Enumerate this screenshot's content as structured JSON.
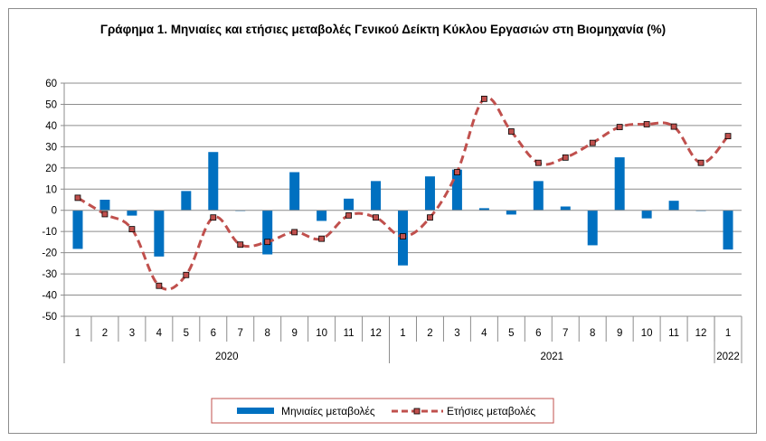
{
  "chart_data": {
    "type": "bar",
    "title": "Γράφημα 1. Μηνιαίες και ετήσιες μεταβολές  Γενικού Δείκτη Κύκλου Εργασιών στη Βιομηχανία (%)",
    "categories": [
      "1",
      "2",
      "3",
      "4",
      "5",
      "6",
      "7",
      "8",
      "9",
      "10",
      "11",
      "12",
      "1",
      "2",
      "3",
      "4",
      "5",
      "6",
      "7",
      "8",
      "9",
      "10",
      "11",
      "12",
      "1"
    ],
    "year_groups": [
      {
        "label": "2020",
        "count": 12
      },
      {
        "label": "2021",
        "count": 12
      },
      {
        "label": "2022",
        "count": 1
      }
    ],
    "ylim": [
      -50,
      60
    ],
    "yticks": [
      -50,
      -40,
      -30,
      -20,
      -10,
      0,
      10,
      20,
      30,
      40,
      50,
      60
    ],
    "grid": true,
    "legend_position": "bottom",
    "series": [
      {
        "name": "Μηνιαίες μεταβολές",
        "type": "bar",
        "color": "#0070c0",
        "values": [
          -18.2,
          5.0,
          -2.5,
          -21.8,
          9.1,
          27.5,
          -0.3,
          -20.8,
          18.0,
          -5.0,
          5.5,
          13.8,
          -26.0,
          16.0,
          19.2,
          1.0,
          -2.0,
          13.8,
          1.8,
          -16.5,
          25.0,
          -3.8,
          4.5,
          -0.2,
          -18.5
        ]
      },
      {
        "name": "Ετήσιες μεταβολές",
        "type": "line",
        "color": "#c0504d",
        "values": [
          5.9,
          -1.8,
          -8.9,
          -35.6,
          -30.5,
          -3.4,
          -16.2,
          -14.9,
          -10.3,
          -13.4,
          -2.4,
          -3.4,
          -12.3,
          -3.4,
          18.0,
          52.6,
          37.2,
          22.4,
          24.9,
          31.8,
          39.3,
          40.6,
          39.5,
          22.4,
          35.0
        ]
      }
    ]
  }
}
